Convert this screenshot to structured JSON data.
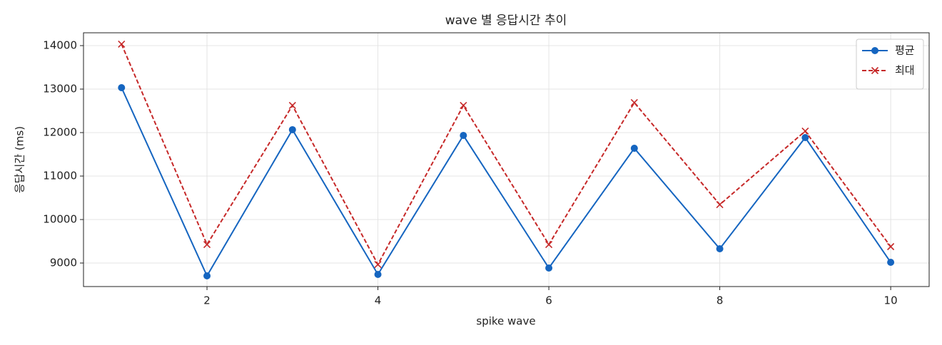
{
  "chart_data": {
    "type": "line",
    "title": "wave 별 응답시간 추이",
    "xlabel": "spike wave",
    "ylabel": "응답시간 (ms)",
    "x": [
      1,
      2,
      3,
      4,
      5,
      6,
      7,
      8,
      9,
      10
    ],
    "series": [
      {
        "name": "평균",
        "color": "#1565c0",
        "marker": "o",
        "linestyle": "solid",
        "values": [
          13033,
          8705,
          12066,
          8738,
          11934,
          8885,
          11639,
          9328,
          11885,
          9016
        ]
      },
      {
        "name": "최대",
        "color": "#c62828",
        "marker": "x",
        "linestyle": "dashed",
        "values": [
          14033,
          9426,
          12623,
          8967,
          12623,
          9426,
          12689,
          10344,
          12033,
          9377
        ]
      }
    ],
    "xlim": [
      0.555,
      10.45
    ],
    "xticks": [
      2,
      4,
      6,
      8,
      10
    ],
    "ylim": [
      8459,
      14295
    ],
    "yticks": [
      9000,
      10000,
      11000,
      12000,
      13000,
      14000
    ],
    "grid": true,
    "legend": "upper right"
  }
}
